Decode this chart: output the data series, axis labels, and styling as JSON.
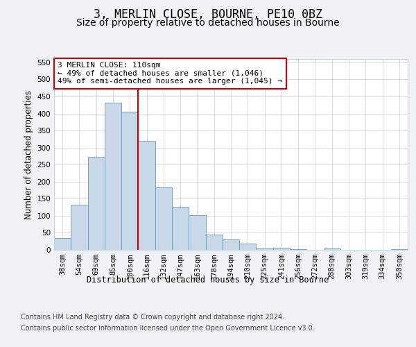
{
  "title": "3, MERLIN CLOSE, BOURNE, PE10 0BZ",
  "subtitle": "Size of property relative to detached houses in Bourne",
  "xlabel": "Distribution of detached houses by size in Bourne",
  "ylabel": "Number of detached properties",
  "categories": [
    "38sqm",
    "54sqm",
    "69sqm",
    "85sqm",
    "100sqm",
    "116sqm",
    "132sqm",
    "147sqm",
    "163sqm",
    "178sqm",
    "194sqm",
    "210sqm",
    "225sqm",
    "241sqm",
    "256sqm",
    "272sqm",
    "288sqm",
    "303sqm",
    "319sqm",
    "334sqm",
    "350sqm"
  ],
  "bar_values": [
    35,
    132,
    272,
    432,
    406,
    320,
    183,
    126,
    102,
    44,
    30,
    18,
    5,
    7,
    2,
    1,
    5,
    1,
    0,
    0,
    3
  ],
  "bar_color": "#c8d8e8",
  "bar_edge_color": "#6699bb",
  "vline_x": 4.5,
  "vline_color": "#cc0000",
  "annotation_text": "3 MERLIN CLOSE: 110sqm\n← 49% of detached houses are smaller (1,046)\n49% of semi-detached houses are larger (1,045) →",
  "annotation_box_color": "white",
  "annotation_box_edge": "#cc0000",
  "ylim": [
    0,
    560
  ],
  "yticks": [
    0,
    50,
    100,
    150,
    200,
    250,
    300,
    350,
    400,
    450,
    500,
    550
  ],
  "footer1": "Contains HM Land Registry data © Crown copyright and database right 2024.",
  "footer2": "Contains public sector information licensed under the Open Government Licence v3.0.",
  "background_color": "#eef2f7",
  "plot_bg_color": "#ffffff",
  "grid_color": "#c8d4e0",
  "title_fontsize": 12,
  "subtitle_fontsize": 10,
  "axis_label_fontsize": 8.5,
  "tick_fontsize": 7.5,
  "annotation_fontsize": 8,
  "footer_fontsize": 7
}
